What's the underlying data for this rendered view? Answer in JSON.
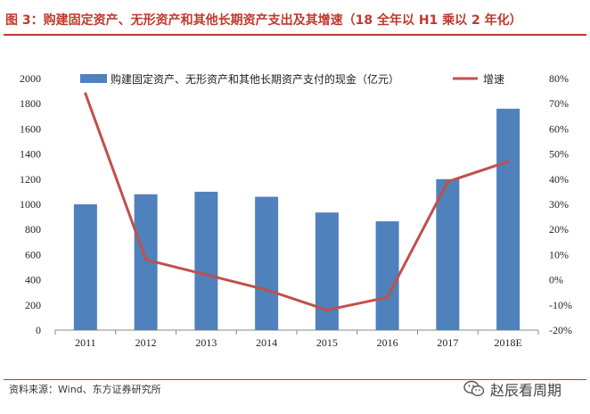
{
  "header": {
    "title": "图 3：购建固定资产、无形资产和其他长期资产支出及其增速（18 全年以 H1 乘以 2 年化）"
  },
  "footer": {
    "source": "资料来源：Wind、东方证券研究所",
    "watermark": "赵辰看周期",
    "watermark_icon": "wechat-icon"
  },
  "colors": {
    "bar": "#4f81bd",
    "line": "#c0504d",
    "title": "#c0392b"
  },
  "chart_data": {
    "type": "bar",
    "categories": [
      "2011",
      "2012",
      "2013",
      "2014",
      "2015",
      "2016",
      "2017",
      "2018E"
    ],
    "series": [
      {
        "name": "购建固定资产、无形资产和其他长期资产支付的现金（亿元）",
        "type": "bar",
        "axis": "left",
        "values": [
          1000,
          1080,
          1100,
          1060,
          935,
          865,
          1200,
          1760
        ]
      },
      {
        "name": "增速",
        "type": "line",
        "axis": "right",
        "values": [
          74,
          8,
          2,
          -4,
          -12,
          -7,
          39,
          47
        ]
      }
    ],
    "ylim_left": [
      0,
      2000
    ],
    "yticks_left": [
      "0",
      "200",
      "400",
      "600",
      "800",
      "1000",
      "1200",
      "1400",
      "1600",
      "1800",
      "2000"
    ],
    "ylim_right": [
      -20,
      80
    ],
    "yticks_right": [
      "-20%",
      "-10%",
      "0%",
      "10%",
      "20%",
      "30%",
      "40%",
      "50%",
      "60%",
      "70%",
      "80%"
    ],
    "grid": false,
    "legend": "top"
  }
}
